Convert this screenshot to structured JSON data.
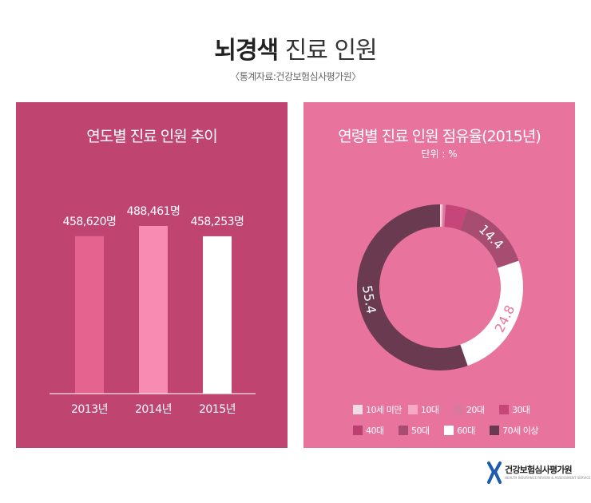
{
  "header": {
    "title_bold": "뇌경색",
    "title_rest": "진료 인원",
    "source": "〈통계자료:건강보험심사평가원〉"
  },
  "colors": {
    "left_panel_bg": "#bf4570",
    "right_panel_bg": "#e8749d"
  },
  "chart_data": [
    {
      "type": "bar",
      "title": "연도별 진료 인원 추이",
      "categories": [
        "2013년",
        "2014년",
        "2015년"
      ],
      "values": [
        458620,
        488461,
        458253
      ],
      "value_labels": [
        "458,620명",
        "488,461명",
        "458,253명"
      ],
      "bar_colors": [
        "#e5638f",
        "#f78bb1",
        "#ffffff"
      ],
      "ylim": [
        0,
        500000
      ],
      "grid": false
    },
    {
      "type": "pie",
      "title": "연령별 진료 인원 점유율(2015년)",
      "unit_label": "단위 : %",
      "categories": [
        "10세 미만",
        "10대",
        "20대",
        "30대",
        "40대",
        "50대",
        "60대",
        "70세 이상"
      ],
      "values": [
        0.3,
        0.3,
        0.5,
        4.3,
        0,
        14.4,
        24.8,
        55.4
      ],
      "data_labels": [
        "",
        "",
        "",
        "",
        "",
        "14.4",
        "24.8",
        "55.4"
      ],
      "colors": [
        "#f2dbe4",
        "#f5a9c4",
        "#d9799e",
        "#c7467a",
        "#bb3f6f",
        "#a84d72",
        "#ffffff",
        "#6a3a51"
      ],
      "legend_position": "bottom"
    }
  ],
  "logo": {
    "name": "건강보험심사평가원",
    "subtitle": "HEALTH INSURANCE REVIEW & ASSESSMENT SERVICE"
  }
}
